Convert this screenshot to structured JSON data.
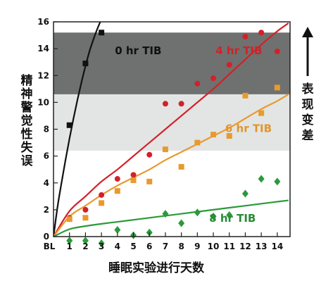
{
  "chart_data": {
    "type": "scatter",
    "xlabel": "睡眠实验进行天数",
    "ylabel": "精神警觉性失误",
    "annotation": "表现变差",
    "categories": [
      "BL",
      "1",
      "2",
      "3",
      "4",
      "5",
      "6",
      "7",
      "8",
      "9",
      "10",
      "11",
      "12",
      "13",
      "14"
    ],
    "x_range": [
      0,
      14.8
    ],
    "ylim": [
      0,
      16
    ],
    "y_ticks": [
      0,
      2,
      4,
      6,
      8,
      10,
      12,
      14,
      16
    ],
    "grid": false,
    "bands": [
      {
        "from": 10.6,
        "to": 15.2,
        "color": "#6e716f"
      },
      {
        "from": 6.4,
        "to": 10.6,
        "color": "#e3e5e4"
      }
    ],
    "series": [
      {
        "name": "0 hr TIB",
        "color": "#111111",
        "label_color": "#111111",
        "marker": "square",
        "x": [
          1,
          2,
          3
        ],
        "values": [
          8.3,
          12.9,
          15.2
        ],
        "curve_x": [
          0,
          0.25,
          0.5,
          0.75,
          1,
          1.25,
          1.5,
          1.75,
          2,
          2.25,
          2.5,
          2.75,
          3,
          3.25,
          3.5
        ],
        "curve_y": [
          0,
          2.2,
          4.0,
          5.7,
          7.3,
          8.8,
          10.2,
          11.5,
          12.7,
          13.8,
          14.7,
          15.5,
          16.2,
          16.9,
          17.5
        ]
      },
      {
        "name": "4 hr TIB",
        "color": "#d42028",
        "label_color": "#d42028",
        "marker": "circle",
        "x": [
          1,
          2,
          3,
          4,
          5,
          6,
          7,
          8,
          9,
          10,
          11,
          12,
          13,
          14
        ],
        "values": [
          1.4,
          2.0,
          3.1,
          4.3,
          4.6,
          6.1,
          9.9,
          9.9,
          11.4,
          11.8,
          12.8,
          14.9,
          15.2,
          13.8
        ],
        "curve_x": [
          0,
          1,
          2,
          3,
          4,
          5,
          6,
          7,
          8,
          9,
          10,
          11,
          12,
          13,
          14,
          14.7
        ],
        "curve_y": [
          0,
          1.9,
          3.0,
          4.1,
          5.0,
          6.0,
          7.0,
          8.0,
          9.0,
          10.0,
          11.0,
          12.1,
          13.2,
          14.3,
          15.3,
          15.9
        ]
      },
      {
        "name": "6 hr TIB",
        "color": "#e89a2e",
        "label_color": "#e0962c",
        "marker": "square",
        "x": [
          1,
          2,
          3,
          4,
          5,
          6,
          7,
          8,
          9,
          10,
          11,
          12,
          13,
          14
        ],
        "values": [
          1.3,
          1.4,
          2.5,
          3.4,
          4.2,
          4.1,
          6.5,
          5.2,
          7.0,
          7.6,
          7.5,
          10.5,
          9.2,
          11.1
        ],
        "curve_x": [
          0,
          1,
          2,
          3,
          4,
          5,
          6,
          7,
          8,
          9,
          10,
          11,
          12,
          13,
          14,
          14.7
        ],
        "curve_y": [
          0,
          1.5,
          2.3,
          3.1,
          3.8,
          4.4,
          5.0,
          5.7,
          6.3,
          6.9,
          7.5,
          8.1,
          8.8,
          9.5,
          10.1,
          10.6
        ]
      },
      {
        "name": "8 hr TIB",
        "color": "#2a9a3a",
        "label_color": "#2a8a34",
        "marker": "diamond",
        "x": [
          1,
          2,
          3,
          4,
          5,
          6,
          7,
          8,
          9,
          10,
          11,
          12,
          13,
          14
        ],
        "values": [
          -0.3,
          -0.3,
          -0.5,
          0.5,
          0.1,
          0.3,
          1.7,
          1.0,
          1.8,
          1.5,
          1.6,
          3.2,
          4.3,
          4.1
        ],
        "curve_x": [
          0,
          1,
          2,
          3,
          4,
          5,
          6,
          7,
          8,
          9,
          10,
          11,
          12,
          13,
          14,
          14.7
        ],
        "curve_y": [
          0,
          0.55,
          0.78,
          0.95,
          1.1,
          1.25,
          1.4,
          1.55,
          1.7,
          1.85,
          2.0,
          2.15,
          2.3,
          2.45,
          2.6,
          2.7
        ]
      }
    ]
  }
}
